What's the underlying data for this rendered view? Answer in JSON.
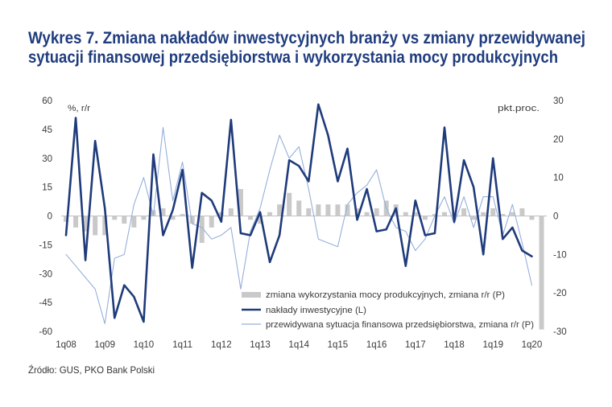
{
  "chart_data": {
    "type": "line",
    "title_lines": [
      "Wykres 7. Zmiana nakładów inwestycyjnych branży vs zmiany przewidywanej",
      "sytuacji finansowej przedsiębiorstwa i wykorzystania mocy produkcyjnych"
    ],
    "y_left": {
      "label": "%, r/r",
      "ylim": [
        -60,
        60
      ],
      "ticks": [
        60,
        45,
        30,
        15,
        0,
        -15,
        -30,
        -45,
        -60
      ]
    },
    "y_right": {
      "label": "pkt.proc.",
      "ylim": [
        -30,
        30
      ],
      "ticks": [
        30,
        20,
        10,
        0,
        -10,
        -20,
        -30
      ]
    },
    "xlim": [
      2008,
      2020.25
    ],
    "x_ticks": [
      {
        "value": 2008,
        "label": "1q08"
      },
      {
        "value": 2009,
        "label": "1q09"
      },
      {
        "value": 2010,
        "label": "1q10"
      },
      {
        "value": 2011,
        "label": "1q11"
      },
      {
        "value": 2012,
        "label": "1q12"
      },
      {
        "value": 2013,
        "label": "1q13"
      },
      {
        "value": 2014,
        "label": "1q14"
      },
      {
        "value": 2015,
        "label": "1q15"
      },
      {
        "value": 2016,
        "label": "1q16"
      },
      {
        "value": 2017,
        "label": "1q17"
      },
      {
        "value": 2018,
        "label": "1q18"
      },
      {
        "value": 2019,
        "label": "1q19"
      },
      {
        "value": 2020,
        "label": "1q20"
      }
    ],
    "x": [
      2008,
      2008.25,
      2008.5,
      2008.75,
      2009,
      2009.25,
      2009.5,
      2009.75,
      2010,
      2010.25,
      2010.5,
      2010.75,
      2011,
      2011.25,
      2011.5,
      2011.75,
      2012,
      2012.25,
      2012.5,
      2012.75,
      2013,
      2013.25,
      2013.5,
      2013.75,
      2014,
      2014.25,
      2014.5,
      2014.75,
      2015,
      2015.25,
      2015.5,
      2015.75,
      2016,
      2016.25,
      2016.5,
      2016.75,
      2017,
      2017.25,
      2017.5,
      2017.75,
      2018,
      2018.25,
      2018.5,
      2018.75,
      2019,
      2019.25,
      2019.5,
      2019.75,
      2020,
      2020.25
    ],
    "series": [
      {
        "name": "zmiana wykorzystania mocy produkcyjnych, zmiana r/r (P)",
        "type": "bar",
        "axis": "right",
        "color": "#c9c9c9",
        "values": [
          -1.5,
          -3,
          -4,
          -5,
          -5,
          -1,
          -2,
          -3,
          -1,
          1.5,
          2,
          -1,
          0.5,
          -2,
          -7,
          -3,
          1,
          2,
          7,
          -1,
          -2,
          1,
          3,
          6,
          4,
          2,
          3,
          3,
          3,
          3,
          2,
          1,
          2,
          4,
          3,
          1,
          1,
          -1,
          0.5,
          1,
          1,
          2,
          -1,
          1,
          2,
          0.5,
          1,
          2,
          -1,
          -29.5
        ]
      },
      {
        "name": "nakłady inwestycyjne (L)",
        "type": "line",
        "axis": "left",
        "color": "#1f3b7b",
        "values": [
          -10,
          51,
          -23,
          39,
          4,
          -53,
          -36,
          -42,
          -55,
          32,
          -10,
          3,
          24,
          -27,
          12,
          8,
          -3,
          50,
          -9,
          -10,
          2,
          -24,
          -10,
          29,
          26,
          18,
          58,
          42,
          18,
          35,
          -2,
          14,
          -8,
          -7,
          4,
          -26,
          8,
          -10,
          -9,
          46,
          -3,
          29,
          15,
          -20,
          30,
          -12,
          -6,
          -18,
          -21,
          null
        ]
      },
      {
        "name": "przewidywana sytuacja finansowa przedsiębiorstwa, zmiana r/r (P)",
        "type": "line",
        "axis": "right",
        "color": "#96afdb",
        "values": [
          -10,
          -13,
          -16,
          -19,
          -28,
          -11,
          -10,
          3,
          10,
          0,
          23,
          4,
          14,
          -2,
          -3,
          -6,
          -5,
          -3,
          -19,
          -4,
          2,
          12,
          21,
          15,
          18,
          7,
          -6,
          -7,
          -8,
          3,
          6,
          8,
          12,
          2,
          -3,
          -4,
          -9,
          -6,
          0,
          5,
          -2,
          5,
          -3,
          5,
          5,
          -5,
          3,
          -7,
          -18,
          null
        ]
      }
    ],
    "grid": false,
    "legend_position": "bottom-right"
  },
  "source": "Źródło: GUS, PKO Bank Polski"
}
